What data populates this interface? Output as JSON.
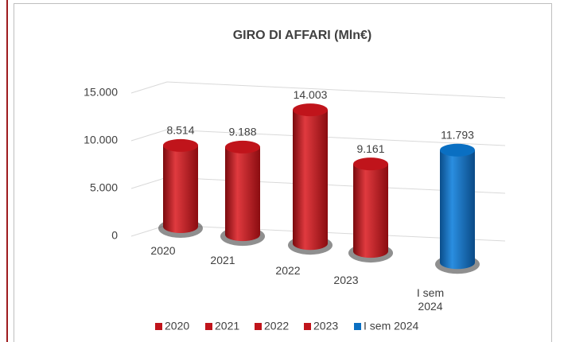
{
  "chart_data": {
    "type": "bar3d",
    "title": "GIRO DI AFFARI (Mln€)",
    "categories": [
      "2020",
      "2021",
      "2022",
      "2023",
      "I sem 2024"
    ],
    "values": [
      8514,
      9188,
      14003,
      9161,
      11793
    ],
    "value_labels": [
      "8.514",
      "9.188",
      "14.003",
      "9.161",
      "11.793"
    ],
    "colors": [
      "#c0141b",
      "#c0141b",
      "#c0141b",
      "#c0141b",
      "#0a6fc2"
    ],
    "ylim": [
      0,
      15000
    ],
    "yticks": [
      0,
      {
        "value": 5000,
        "label": "5.000"
      },
      {
        "value": 10000,
        "label": "10.000"
      },
      {
        "value": 15000,
        "label": "15.000"
      }
    ],
    "grid": true,
    "legend": "bottom"
  }
}
